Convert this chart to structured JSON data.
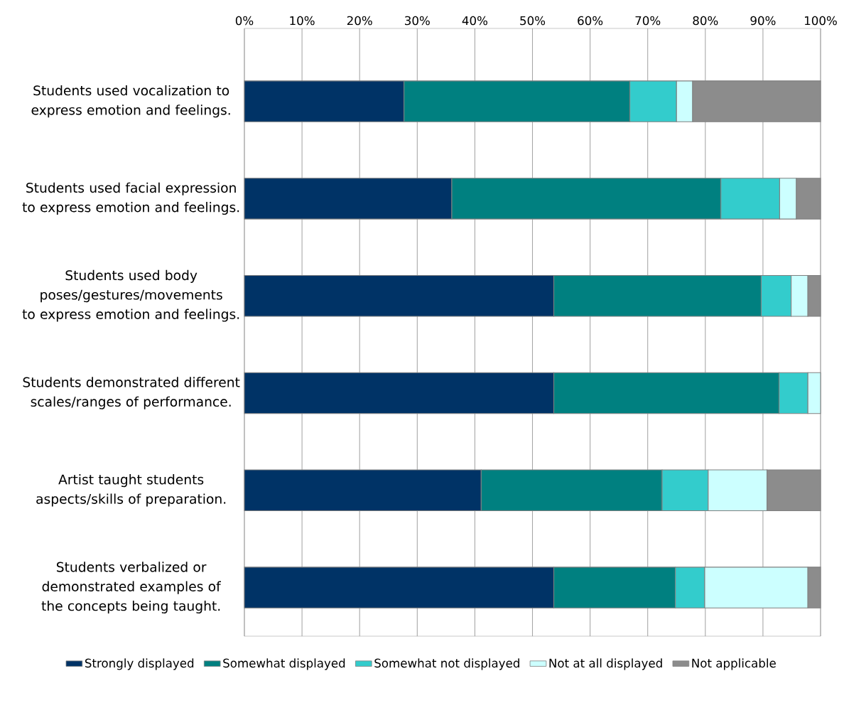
{
  "chart_data": {
    "type": "bar",
    "orientation": "horizontal",
    "stacked": true,
    "categories": [
      "Students used vocalization to express emotion and feelings.",
      "Students used facial expression to express emotion and feelings.",
      "Students used body poses/gestures/movements to express emotion and feelings.",
      "Students demonstrated different scales/ranges of performance.",
      "Artist taught students aspects/skills of preparation.",
      "Students verbalized or demonstrated examples of the concepts being taught."
    ],
    "series": [
      {
        "name": "Strongly displayed",
        "color": "#003366",
        "values": [
          27.7,
          36.0,
          53.7,
          53.7,
          41.1,
          53.7
        ]
      },
      {
        "name": "Somewhat displayed",
        "color": "#008080",
        "values": [
          39.2,
          46.7,
          36.0,
          39.1,
          31.4,
          21.1
        ]
      },
      {
        "name": "Somewhat not displayed",
        "color": "#33cccc",
        "values": [
          8.1,
          10.2,
          5.2,
          5.0,
          8.0,
          5.1
        ]
      },
      {
        "name": "Not at all displayed",
        "color": "#ccffff",
        "values": [
          2.8,
          2.9,
          2.9,
          2.2,
          10.2,
          17.9
        ]
      },
      {
        "name": "Not applicable",
        "color": "#8c8c8c",
        "values": [
          22.2,
          4.2,
          2.2,
          null,
          9.3,
          2.2
        ]
      }
    ],
    "xlim": [
      0,
      100
    ],
    "xticks": [
      {
        "value": 0,
        "label": "0%"
      },
      {
        "value": 10,
        "label": "10%"
      },
      {
        "value": 20,
        "label": "20%"
      },
      {
        "value": 30,
        "label": "30%"
      },
      {
        "value": 40,
        "label": "40%"
      },
      {
        "value": 50,
        "label": "50%"
      },
      {
        "value": 60,
        "label": "60%"
      },
      {
        "value": 70,
        "label": "70%"
      },
      {
        "value": 80,
        "label": "80%"
      },
      {
        "value": 90,
        "label": "90%"
      },
      {
        "value": 100,
        "label": "100%"
      }
    ],
    "grid": "x",
    "legend": "bottom"
  }
}
